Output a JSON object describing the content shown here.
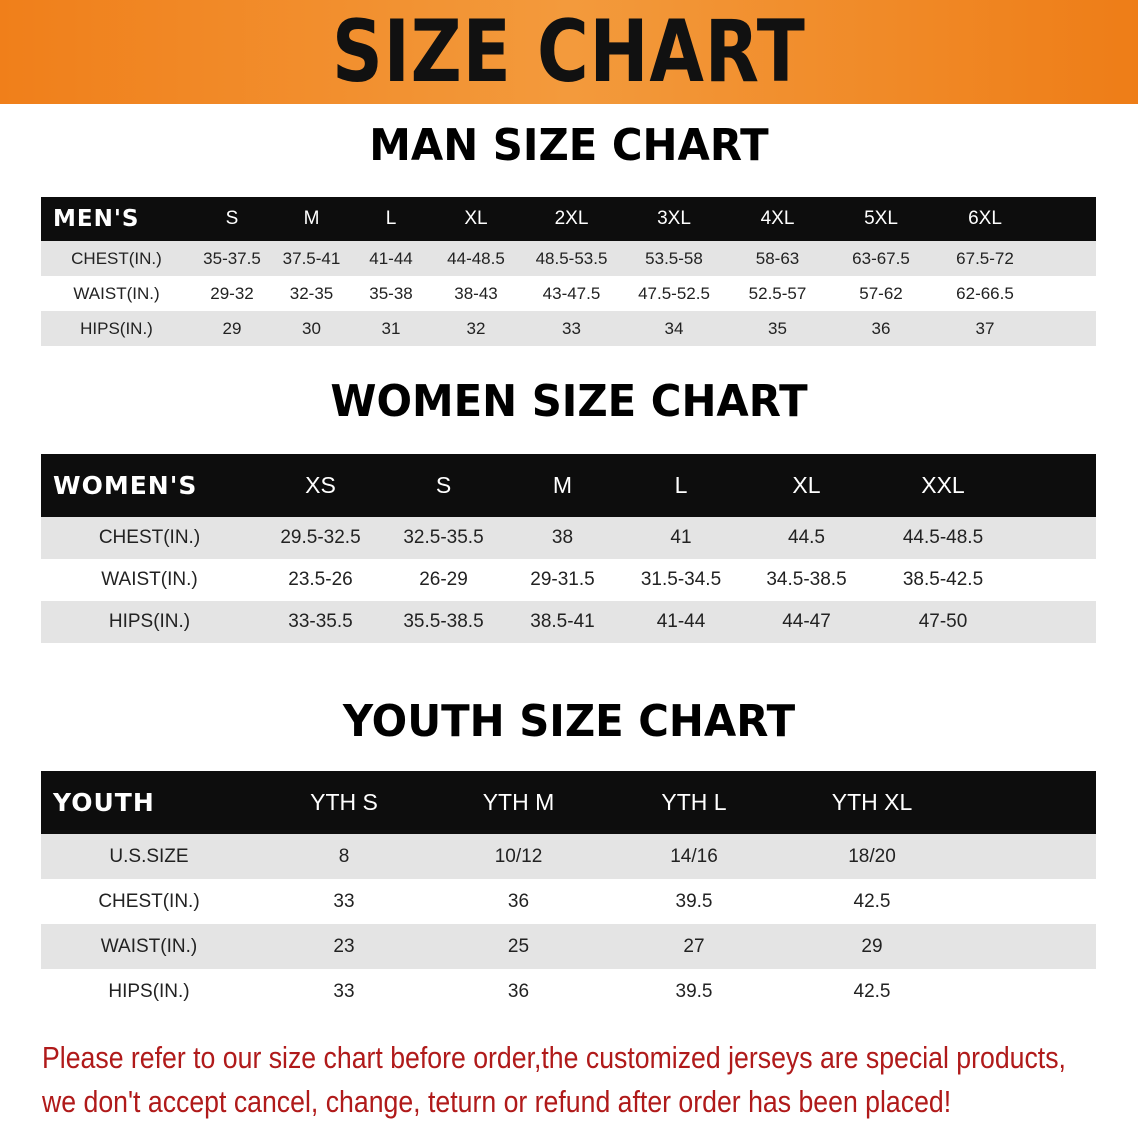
{
  "banner_title": "SIZE CHART",
  "men": {
    "title": "MAN SIZE CHART",
    "header": [
      "MEN'S",
      "S",
      "M",
      "L",
      "XL",
      "2XL",
      "3XL",
      "4XL",
      "5XL",
      "6XL"
    ],
    "rows": [
      [
        "CHEST(IN.)",
        "35-37.5",
        "37.5-41",
        "41-44",
        "44-48.5",
        "48.5-53.5",
        "53.5-58",
        "58-63",
        "63-67.5",
        "67.5-72"
      ],
      [
        "WAIST(IN.)",
        "29-32",
        "32-35",
        "35-38",
        "38-43",
        "43-47.5",
        "47.5-52.5",
        "52.5-57",
        "57-62",
        "62-66.5"
      ],
      [
        "HIPS(IN.)",
        "29",
        "30",
        "31",
        "32",
        "33",
        "34",
        "35",
        "36",
        "37"
      ]
    ]
  },
  "women": {
    "title": "WOMEN SIZE CHART",
    "header": [
      "WOMEN'S",
      "XS",
      "S",
      "M",
      "L",
      "XL",
      "XXL"
    ],
    "rows": [
      [
        "CHEST(IN.)",
        "29.5-32.5",
        "32.5-35.5",
        "38",
        "41",
        "44.5",
        "44.5-48.5"
      ],
      [
        "WAIST(IN.)",
        "23.5-26",
        "26-29",
        "29-31.5",
        "31.5-34.5",
        "34.5-38.5",
        "38.5-42.5"
      ],
      [
        "HIPS(IN.)",
        "33-35.5",
        "35.5-38.5",
        "38.5-41",
        "41-44",
        "44-47",
        "47-50"
      ]
    ]
  },
  "youth": {
    "title": "YOUTH SIZE CHART",
    "header": [
      "YOUTH",
      "YTH S",
      "YTH M",
      "YTH L",
      "YTH XL"
    ],
    "rows": [
      [
        "U.S.SIZE",
        "8",
        "10/12",
        "14/16",
        "18/20"
      ],
      [
        "CHEST(IN.)",
        "33",
        "36",
        "39.5",
        "42.5"
      ],
      [
        "WAIST(IN.)",
        "23",
        "25",
        "27",
        "29"
      ],
      [
        "HIPS(IN.)",
        "33",
        "36",
        "39.5",
        "42.5"
      ]
    ]
  },
  "note": {
    "line1": "Please refer to our size chart before order,the customized jerseys are special products,",
    "line2": "we don't accept cancel, change, teturn or refund after order has been placed!"
  },
  "colors": {
    "banner": "#f07f1a",
    "header_row": "#0d0d0d",
    "stripe": "#e4e4e4",
    "note": "#b01a1a"
  }
}
